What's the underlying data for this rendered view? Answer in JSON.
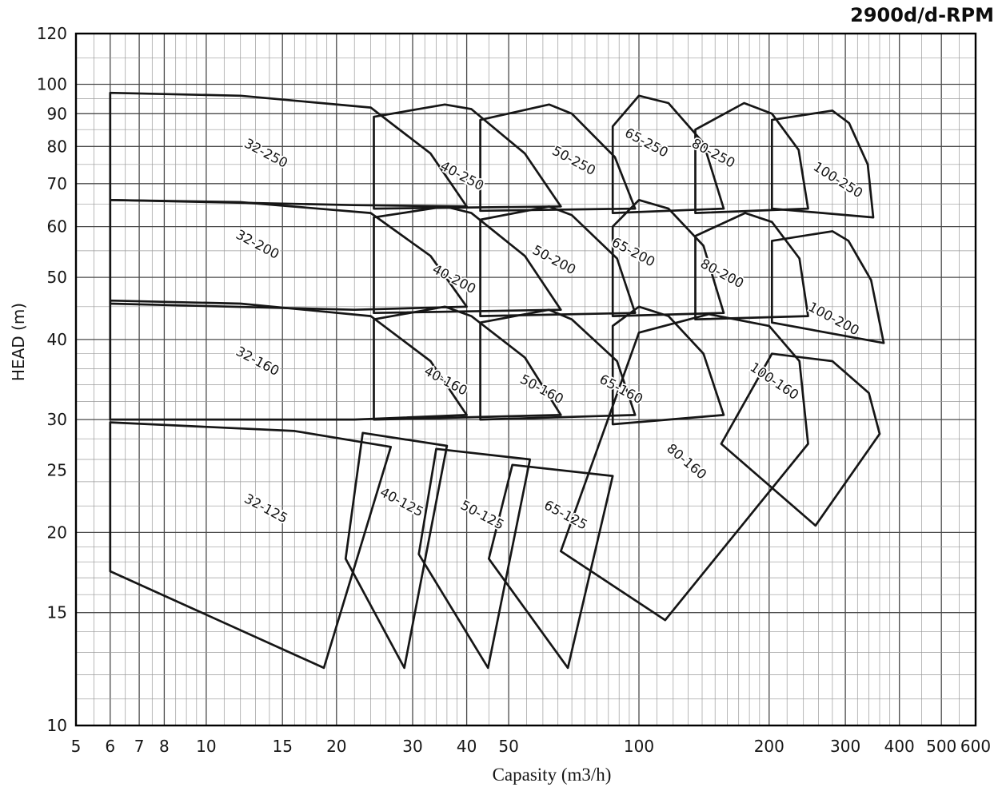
{
  "title": "2900d/d-RPM",
  "chart_data": {
    "type": "area",
    "title": "2900d/d-RPM",
    "xlabel": "Capasity (m3/h)",
    "ylabel": "HEAD (m)",
    "x_scale": "log",
    "y_scale": "log",
    "xlim": [
      5,
      600
    ],
    "ylim": [
      10,
      120
    ],
    "x_ticks": [
      5,
      6,
      7,
      8,
      10,
      15,
      20,
      30,
      40,
      50,
      100,
      200,
      300,
      400,
      500,
      600
    ],
    "y_ticks": [
      10,
      15,
      20,
      25,
      30,
      40,
      50,
      60,
      70,
      80,
      90,
      100,
      120
    ],
    "grid": "log-log graph paper, minor and labeled major lines",
    "legend_position": "none",
    "colors": {
      "curve": "#161616",
      "grid_minor": "#9a9a9a",
      "grid_major": "#4a4a4a",
      "frame": "#000000",
      "text": "#161616"
    },
    "envelopes": [
      {
        "label": "32-250",
        "label_pos": [
          13.6,
          77
        ],
        "label_angle": 28,
        "points": [
          [
            6,
            97
          ],
          [
            12,
            96
          ],
          [
            24,
            92
          ],
          [
            33,
            78
          ],
          [
            40,
            64.5
          ],
          [
            22,
            64.8
          ],
          [
            6,
            66
          ]
        ]
      },
      {
        "label": "40-250",
        "label_pos": [
          38.6,
          71
        ],
        "label_angle": 28,
        "points": [
          [
            24.4,
            89
          ],
          [
            35.6,
            93
          ],
          [
            41,
            91.5
          ],
          [
            54.5,
            78
          ],
          [
            66,
            64.5
          ],
          [
            24.4,
            64
          ]
        ]
      },
      {
        "label": "50-250",
        "label_pos": [
          70,
          75
        ],
        "label_angle": 28,
        "points": [
          [
            43,
            88
          ],
          [
            62,
            93
          ],
          [
            70,
            90
          ],
          [
            88,
            77
          ],
          [
            98,
            64
          ],
          [
            43,
            63.5
          ]
        ]
      },
      {
        "label": "65-250",
        "label_pos": [
          103,
          80
        ],
        "label_angle": 28,
        "points": [
          [
            87,
            86
          ],
          [
            100,
            96
          ],
          [
            117,
            93.5
          ],
          [
            141,
            81
          ],
          [
            157,
            64
          ],
          [
            87,
            63
          ]
        ]
      },
      {
        "label": "80-250",
        "label_pos": [
          147,
          77
        ],
        "label_angle": 28,
        "points": [
          [
            135,
            85
          ],
          [
            175,
            93.5
          ],
          [
            203,
            90
          ],
          [
            234,
            79
          ],
          [
            246,
            64
          ],
          [
            135,
            63
          ]
        ]
      },
      {
        "label": "100-250",
        "label_pos": [
          285,
          70
        ],
        "label_angle": 32,
        "points": [
          [
            203,
            88
          ],
          [
            280,
            91
          ],
          [
            306,
            87
          ],
          [
            338,
            75
          ],
          [
            348,
            62
          ],
          [
            203,
            64
          ]
        ]
      },
      {
        "label": "32-200",
        "label_pos": [
          13,
          55.5
        ],
        "label_angle": 28,
        "points": [
          [
            6,
            66
          ],
          [
            12,
            65.5
          ],
          [
            24,
            63
          ],
          [
            33,
            54
          ],
          [
            40,
            45
          ],
          [
            22,
            44.5
          ],
          [
            6,
            45.5
          ]
        ]
      },
      {
        "label": "40-200",
        "label_pos": [
          37,
          49
        ],
        "label_angle": 28,
        "points": [
          [
            24.4,
            62
          ],
          [
            35.6,
            64.5
          ],
          [
            41,
            63
          ],
          [
            54.5,
            54
          ],
          [
            66,
            44.5
          ],
          [
            24.4,
            44
          ]
        ]
      },
      {
        "label": "50-200",
        "label_pos": [
          63,
          52.5
        ],
        "label_angle": 28,
        "points": [
          [
            43,
            61.5
          ],
          [
            62,
            64.5
          ],
          [
            70,
            62.5
          ],
          [
            89,
            53.5
          ],
          [
            98,
            44
          ],
          [
            43,
            43.5
          ]
        ]
      },
      {
        "label": "65-200",
        "label_pos": [
          96,
          54
        ],
        "label_angle": 28,
        "points": [
          [
            87,
            60
          ],
          [
            100,
            66
          ],
          [
            117,
            64
          ],
          [
            141,
            56
          ],
          [
            157,
            44
          ],
          [
            87,
            43.5
          ]
        ]
      },
      {
        "label": "80-200",
        "label_pos": [
          154,
          50
        ],
        "label_angle": 28,
        "points": [
          [
            135,
            58
          ],
          [
            176,
            63
          ],
          [
            203,
            61
          ],
          [
            235,
            53.5
          ],
          [
            246,
            43.5
          ],
          [
            135,
            43
          ]
        ]
      },
      {
        "label": "100-200",
        "label_pos": [
          279,
          42.5
        ],
        "label_angle": 28,
        "points": [
          [
            203,
            57
          ],
          [
            280,
            59
          ],
          [
            305,
            57
          ],
          [
            344,
            49.5
          ],
          [
            368,
            39.5
          ],
          [
            203,
            42.5
          ]
        ]
      },
      {
        "label": "32-160",
        "label_pos": [
          13,
          36.5
        ],
        "label_angle": 28,
        "points": [
          [
            6,
            46
          ],
          [
            12,
            45.5
          ],
          [
            24,
            43.5
          ],
          [
            33,
            37
          ],
          [
            40,
            30.5
          ],
          [
            22,
            30
          ],
          [
            6,
            30
          ]
        ]
      },
      {
        "label": "40-160",
        "label_pos": [
          35.4,
          34
        ],
        "label_angle": 28,
        "points": [
          [
            24.4,
            43
          ],
          [
            35.6,
            45
          ],
          [
            41,
            43.5
          ],
          [
            54.5,
            37.5
          ],
          [
            66,
            30.5
          ],
          [
            24.4,
            30
          ]
        ]
      },
      {
        "label": "50-160",
        "label_pos": [
          59,
          33
        ],
        "label_angle": 28,
        "points": [
          [
            43,
            42.5
          ],
          [
            62,
            44.5
          ],
          [
            70,
            43
          ],
          [
            89,
            37
          ],
          [
            98,
            30.5
          ],
          [
            43,
            30
          ]
        ]
      },
      {
        "label": "65-160",
        "label_pos": [
          90,
          33
        ],
        "label_angle": 28,
        "points": [
          [
            87,
            42
          ],
          [
            100,
            45
          ],
          [
            117,
            43.5
          ],
          [
            141,
            38
          ],
          [
            157,
            30.5
          ],
          [
            87,
            29.5
          ]
        ]
      },
      {
        "label": "80-160",
        "label_pos": [
          127,
          25.5
        ],
        "label_angle": 40,
        "points": [
          [
            100,
            41
          ],
          [
            145,
            43.8
          ],
          [
            200,
            42
          ],
          [
            235,
            37
          ],
          [
            246,
            27.5
          ],
          [
            115,
            14.6
          ],
          [
            66,
            18.7
          ]
        ]
      },
      {
        "label": "100-160",
        "label_pos": [
          203,
          34
        ],
        "label_angle": 34,
        "points": [
          [
            203,
            38
          ],
          [
            280,
            37
          ],
          [
            340,
            33
          ],
          [
            360,
            28.5
          ],
          [
            256,
            20.5
          ],
          [
            155,
            27.5
          ]
        ]
      },
      {
        "label": "32-125",
        "label_pos": [
          13.6,
          21.5
        ],
        "label_angle": 28,
        "points": [
          [
            6,
            29.7
          ],
          [
            16,
            28.8
          ],
          [
            26.7,
            27.2
          ],
          [
            18.7,
            12.3
          ],
          [
            6,
            17.4
          ]
        ]
      },
      {
        "label": "40-125",
        "label_pos": [
          28,
          22
        ],
        "label_angle": 28,
        "points": [
          [
            23,
            28.6
          ],
          [
            36,
            27.3
          ],
          [
            28.7,
            12.3
          ],
          [
            21,
            18.2
          ]
        ]
      },
      {
        "label": "50-125",
        "label_pos": [
          43,
          21
        ],
        "label_angle": 28,
        "points": [
          [
            34,
            27
          ],
          [
            56,
            26
          ],
          [
            44.8,
            12.3
          ],
          [
            31,
            18.5
          ]
        ]
      },
      {
        "label": "65-125",
        "label_pos": [
          67,
          21
        ],
        "label_angle": 28,
        "points": [
          [
            51,
            25.5
          ],
          [
            87,
            24.5
          ],
          [
            68.5,
            12.3
          ],
          [
            45,
            18.2
          ]
        ]
      }
    ]
  }
}
